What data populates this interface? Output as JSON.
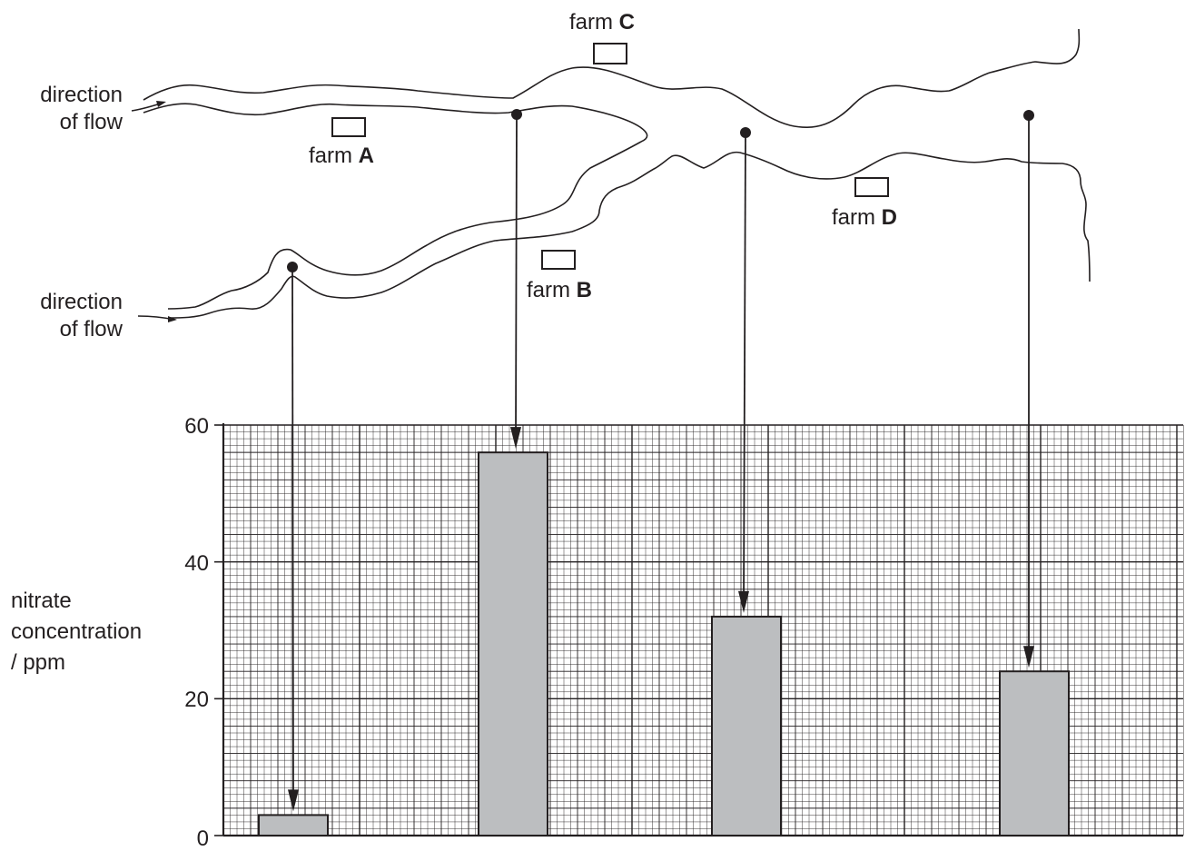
{
  "map": {
    "flow_labels": [
      {
        "line1": "direction",
        "line2": "of flow"
      },
      {
        "line1": "direction",
        "line2": "of flow"
      }
    ],
    "farms": [
      {
        "prefix": "farm",
        "letter": "A"
      },
      {
        "prefix": "farm",
        "letter": "B"
      },
      {
        "prefix": "farm",
        "letter": "C"
      },
      {
        "prefix": "farm",
        "letter": "D"
      }
    ]
  },
  "chart_data": {
    "type": "bar",
    "categories": [
      "",
      "",
      "",
      ""
    ],
    "values": [
      3,
      56,
      32,
      24
    ],
    "title": "",
    "xlabel": "",
    "ylabel_lines": [
      "nitrate",
      "concentration",
      "/ ppm"
    ],
    "ylim": [
      0,
      60
    ],
    "yticks": [
      "0",
      "20",
      "40",
      "60"
    ],
    "grid": true,
    "bar_color": "#bcbec0"
  }
}
